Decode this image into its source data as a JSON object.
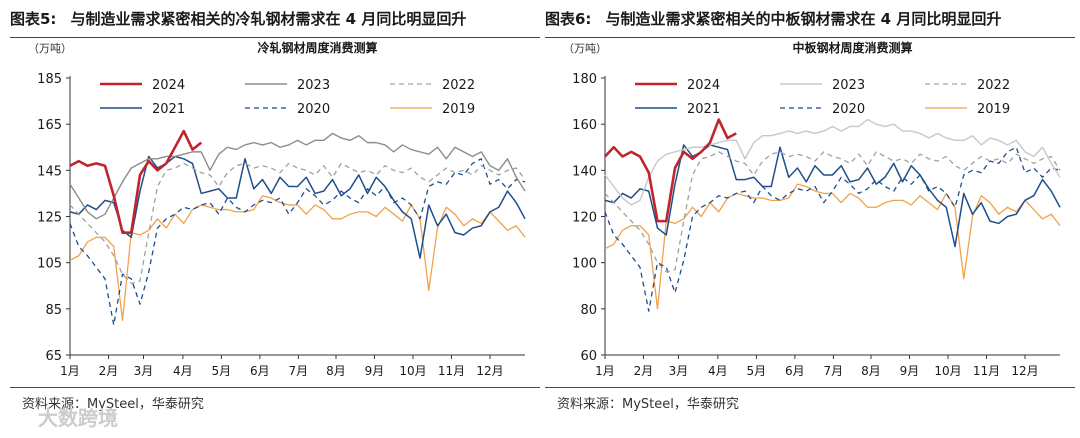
{
  "figures": [
    {
      "number": "图表5:",
      "heading": "与制造业需求紧密相关的冷轧钢材需求在 4 月同比明显回升",
      "source": "资料来源：MySteel，华泰研究"
    },
    {
      "number": "图表6:",
      "heading": "与制造业需求紧密相关的中板钢材需求在 4 月同比明显回升",
      "source": "资料来源：MySteel，华泰研究"
    }
  ],
  "watermark": "大数跨境",
  "chart_data": [
    {
      "type": "line",
      "title": "冷轧钢材周度消费测算",
      "unit": "（万吨）",
      "ylim": [
        65,
        185
      ],
      "yticks": [
        65,
        85,
        105,
        125,
        145,
        165,
        185
      ],
      "xlim": [
        0,
        52
      ],
      "xticks": [
        {
          "x": 0,
          "label": "1月"
        },
        {
          "x": 4.4,
          "label": "2月"
        },
        {
          "x": 8.4,
          "label": "3月"
        },
        {
          "x": 12.9,
          "label": "4月"
        },
        {
          "x": 17.3,
          "label": "5月"
        },
        {
          "x": 21.7,
          "label": "6月"
        },
        {
          "x": 26.1,
          "label": "7月"
        },
        {
          "x": 30.4,
          "label": "8月"
        },
        {
          "x": 34.8,
          "label": "9月"
        },
        {
          "x": 39.2,
          "label": "10月"
        },
        {
          "x": 43.6,
          "label": "11月"
        },
        {
          "x": 48,
          "label": "12月"
        }
      ],
      "grid": false,
      "legend_position": "top",
      "series": [
        {
          "name": "2024",
          "color": "#c0252b",
          "style": "solid",
          "width": 2.6,
          "values": [
            147,
            149,
            147,
            148,
            147,
            134,
            118,
            118,
            143,
            149,
            145,
            148,
            155,
            162,
            154,
            157
          ]
        },
        {
          "name": "2023",
          "color": "#8c8c8c",
          "style": "solid",
          "width": 1.4,
          "values": [
            139,
            133,
            127,
            124,
            126,
            133,
            140,
            146,
            148,
            150,
            150,
            151,
            151,
            152,
            153,
            153,
            145,
            152,
            155,
            154,
            156,
            157,
            156,
            157,
            155,
            156,
            158,
            156,
            158,
            158,
            161,
            159,
            158,
            160,
            157,
            157,
            156,
            153,
            156,
            154,
            153,
            152,
            155,
            150,
            155,
            153,
            151,
            153,
            147,
            145,
            150,
            142,
            136
          ]
        },
        {
          "name": "2022",
          "color": "#a0a0a0",
          "style": "dash",
          "width": 1.3,
          "values": [
            130,
            126,
            122,
            118,
            114,
            108,
            100,
            96,
            97,
            118,
            138,
            145,
            146,
            148,
            146,
            144,
            143,
            138,
            144,
            147,
            148,
            146,
            147,
            146,
            144,
            148,
            146,
            145,
            143,
            147,
            142,
            148,
            146,
            144,
            145,
            143,
            147,
            145,
            144,
            146,
            142,
            140,
            143,
            146,
            144,
            145,
            143,
            147,
            145,
            143,
            145,
            146,
            141
          ]
        },
        {
          "name": "2021",
          "color": "#1f4e8c",
          "style": "solid",
          "width": 1.5,
          "values": [
            127,
            126,
            130,
            128,
            132,
            131,
            119,
            116,
            136,
            151,
            146,
            148,
            151,
            150,
            148,
            135,
            136,
            137,
            133,
            133,
            150,
            137,
            141,
            135,
            142,
            138,
            138,
            142,
            135,
            136,
            141,
            134,
            137,
            143,
            135,
            142,
            138,
            132,
            127,
            124,
            107,
            130,
            121,
            126,
            118,
            117,
            120,
            121,
            127,
            129,
            136,
            131,
            124
          ]
        },
        {
          "name": "2020",
          "color": "#1f4e8c",
          "style": "dash",
          "width": 1.3,
          "values": [
            122,
            112,
            108,
            103,
            98,
            78,
            100,
            98,
            87,
            101,
            120,
            124,
            126,
            129,
            128,
            130,
            131,
            126,
            133,
            129,
            127,
            130,
            132,
            131,
            133,
            126,
            131,
            137,
            134,
            130,
            132,
            136,
            133,
            131,
            137,
            134,
            138,
            131,
            133,
            130,
            124,
            138,
            140,
            139,
            144,
            143,
            148,
            150,
            139,
            141,
            137,
            141,
            140
          ]
        },
        {
          "name": "2019",
          "color": "#f0a24a",
          "style": "solid",
          "width": 1.3,
          "values": [
            106,
            108,
            114,
            116,
            116,
            112,
            80,
            118,
            117,
            119,
            124,
            120,
            126,
            122,
            128,
            130,
            129,
            128,
            128,
            127,
            127,
            128,
            134,
            133,
            131,
            130,
            130,
            126,
            130,
            128,
            124,
            124,
            126,
            127,
            127,
            125,
            129,
            126,
            123,
            130,
            124,
            93,
            120,
            129,
            126,
            121,
            124,
            122,
            127,
            123,
            119,
            121,
            116
          ]
        }
      ]
    },
    {
      "type": "line",
      "title": "中板钢材周度消费测算",
      "unit": "（万吨）",
      "ylim": [
        60,
        180
      ],
      "yticks": [
        60,
        80,
        100,
        120,
        140,
        160,
        180
      ],
      "xlim": [
        0,
        52
      ],
      "xticks": [
        {
          "x": 0,
          "label": "1月"
        },
        {
          "x": 4.4,
          "label": "2月"
        },
        {
          "x": 8.4,
          "label": "3月"
        },
        {
          "x": 12.9,
          "label": "4月"
        },
        {
          "x": 17.3,
          "label": "5月"
        },
        {
          "x": 21.7,
          "label": "6月"
        },
        {
          "x": 26.1,
          "label": "7月"
        },
        {
          "x": 30.4,
          "label": "8月"
        },
        {
          "x": 34.8,
          "label": "9月"
        },
        {
          "x": 39.2,
          "label": "10月"
        },
        {
          "x": 43.6,
          "label": "11月"
        },
        {
          "x": 48,
          "label": "12月"
        }
      ],
      "grid": false,
      "legend_position": "top",
      "series": [
        {
          "name": "2024",
          "color": "#c0252b",
          "style": "solid",
          "width": 2.6,
          "values": [
            146,
            150,
            146,
            148,
            146,
            139,
            118,
            118,
            141,
            148,
            145,
            148,
            152,
            162,
            154,
            156
          ]
        },
        {
          "name": "2023",
          "color": "#c8c8c8",
          "style": "solid",
          "width": 1.4,
          "values": [
            138,
            133,
            128,
            125,
            127,
            137,
            144,
            147,
            148,
            149,
            150,
            150,
            151,
            152,
            153,
            153,
            145,
            152,
            155,
            155,
            156,
            157,
            156,
            157,
            156,
            157,
            159,
            157,
            159,
            159,
            162,
            160,
            159,
            160,
            157,
            157,
            156,
            154,
            156,
            154,
            153,
            153,
            155,
            151,
            154,
            153,
            151,
            153,
            148,
            146,
            150,
            143,
            137
          ]
        },
        {
          "name": "2022",
          "color": "#a0a0a0",
          "style": "dash",
          "width": 1.3,
          "values": [
            130,
            126,
            122,
            118,
            114,
            108,
            100,
            96,
            97,
            118,
            138,
            145,
            146,
            148,
            146,
            144,
            143,
            138,
            144,
            147,
            148,
            146,
            147,
            146,
            144,
            148,
            146,
            145,
            143,
            147,
            142,
            148,
            146,
            144,
            145,
            143,
            147,
            145,
            144,
            146,
            142,
            140,
            143,
            146,
            144,
            145,
            143,
            147,
            145,
            143,
            145,
            146,
            140
          ]
        },
        {
          "name": "2021",
          "color": "#1f4e8c",
          "style": "solid",
          "width": 1.5,
          "values": [
            127,
            126,
            130,
            128,
            132,
            131,
            115,
            112,
            134,
            151,
            146,
            148,
            151,
            150,
            149,
            136,
            136,
            137,
            133,
            133,
            150,
            137,
            141,
            135,
            142,
            138,
            138,
            142,
            135,
            136,
            141,
            134,
            137,
            143,
            135,
            142,
            138,
            132,
            127,
            124,
            107,
            130,
            121,
            126,
            118,
            117,
            120,
            121,
            127,
            129,
            136,
            131,
            124
          ]
        },
        {
          "name": "2020",
          "color": "#1f4e8c",
          "style": "dash",
          "width": 1.3,
          "values": [
            122,
            112,
            108,
            103,
            98,
            79,
            100,
            98,
            87,
            101,
            120,
            124,
            126,
            129,
            128,
            130,
            131,
            126,
            133,
            129,
            127,
            130,
            132,
            131,
            133,
            126,
            131,
            137,
            134,
            130,
            132,
            136,
            133,
            131,
            137,
            134,
            138,
            131,
            133,
            130,
            124,
            138,
            140,
            139,
            144,
            143,
            148,
            150,
            139,
            141,
            137,
            141,
            140
          ]
        },
        {
          "name": "2019",
          "color": "#f0a24a",
          "style": "solid",
          "width": 1.3,
          "values": [
            106,
            108,
            114,
            116,
            116,
            112,
            80,
            118,
            117,
            119,
            124,
            120,
            126,
            122,
            128,
            130,
            129,
            128,
            128,
            127,
            127,
            128,
            134,
            133,
            131,
            130,
            130,
            126,
            130,
            128,
            124,
            124,
            126,
            127,
            127,
            125,
            129,
            126,
            123,
            130,
            124,
            93,
            120,
            129,
            126,
            121,
            124,
            122,
            127,
            123,
            119,
            121,
            116
          ]
        }
      ]
    }
  ]
}
